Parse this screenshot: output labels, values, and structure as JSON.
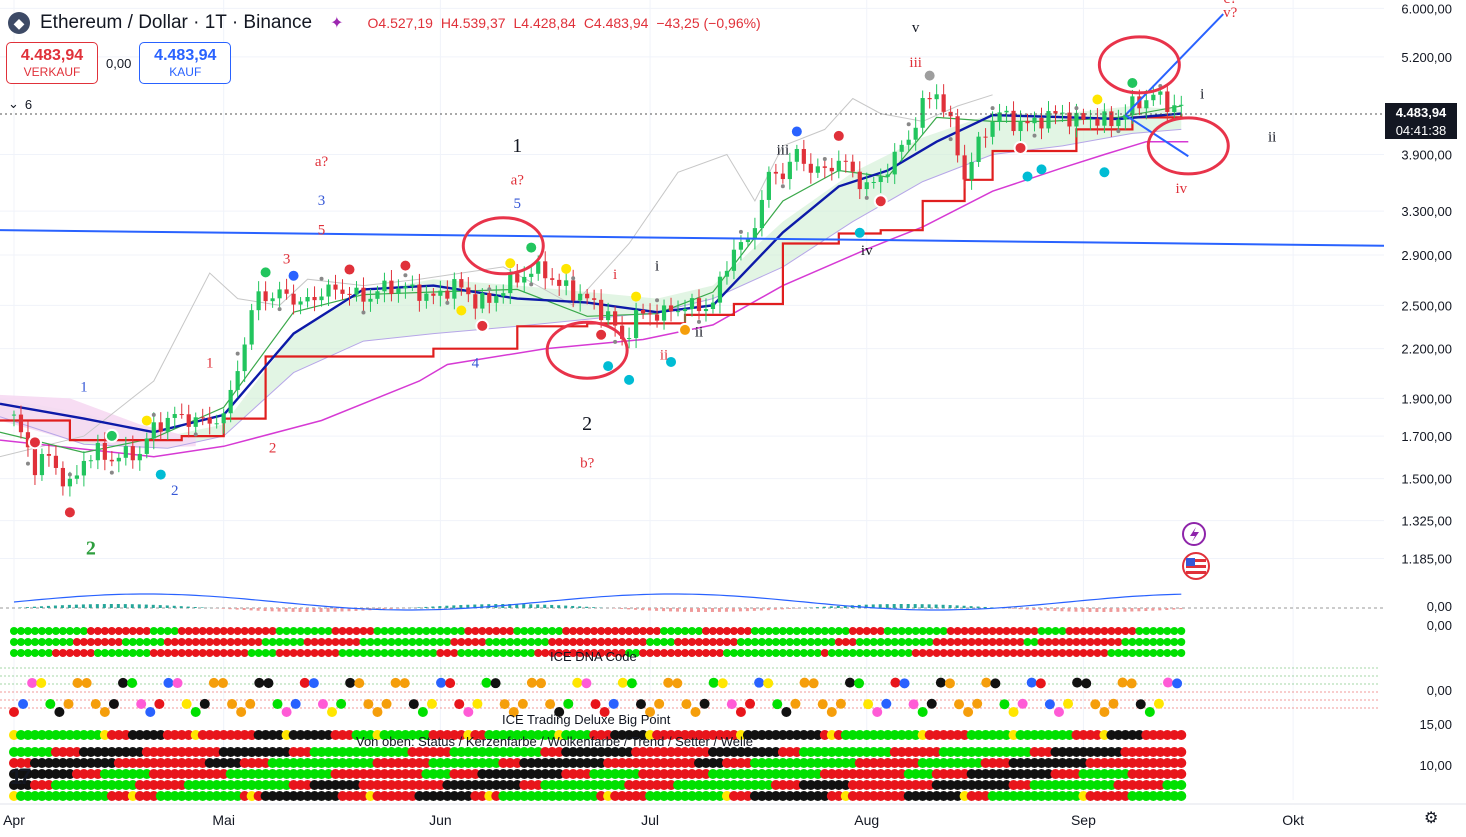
{
  "header": {
    "symbol": "Ethereum / Dollar · 1T · Binance",
    "open": "O4.527,19",
    "high": "H4.539,37",
    "low": "L4.428,84",
    "close": "C4.483,94",
    "change": "−43,25 (−0,96%)",
    "sell_price": "4.483,94",
    "sell_label": "VERKAUF",
    "spread": "0,00",
    "buy_price": "4.483,94",
    "buy_label": "KAUF",
    "indicator_count": "6",
    "current_price": "4.483,94",
    "countdown": "04:41:38"
  },
  "indicator_titles": {
    "dna": "ICE DNA Code",
    "deluxe": "ICE Trading Deluxe Big Point",
    "rows_note": "Von oben: Status / Kerzenfarbe / Wolkenfarbe / Trend / Setter / Welle"
  },
  "colors": {
    "up": "#089981",
    "down": "#f23645",
    "green": "#22c55e",
    "red": "#e0313a",
    "blue_line": "#2962ff",
    "kijun": "#0d1aa8",
    "trail": "#e01e1e",
    "cloud": "#cfeed2",
    "pink_cloud": "#f6d9f2",
    "magenta": "#d63ad4",
    "label_red": "#e0313a",
    "label_blue": "#3557d6",
    "label_green": "#2e9e3e"
  },
  "chart_data": {
    "type": "candlestick",
    "title": "Ethereum / Dollar · 1T · Binance",
    "price_scale": "log",
    "ylim": [
      1080,
      6150
    ],
    "y_ticks": [
      {
        "v": 6000,
        "label": "6.000,00"
      },
      {
        "v": 5200,
        "label": "5.200,00"
      },
      {
        "v": 3900,
        "label": "3.900,00"
      },
      {
        "v": 3300,
        "label": "3.300,00"
      },
      {
        "v": 2900,
        "label": "2.900,00"
      },
      {
        "v": 2500,
        "label": "2.500,00"
      },
      {
        "v": 2200,
        "label": "2.200,00"
      },
      {
        "v": 1900,
        "label": "1.900,00"
      },
      {
        "v": 1700,
        "label": "1.700,00"
      },
      {
        "v": 1500,
        "label": "1.500,00"
      },
      {
        "v": 1325,
        "label": "1.325,00"
      },
      {
        "v": 1185,
        "label": "1.185,00"
      }
    ],
    "x_labels": [
      "Apr",
      "Mai",
      "Jun",
      "Jul",
      "Aug",
      "Sep",
      "Okt"
    ],
    "x_label_days": [
      0,
      30,
      61,
      91,
      122,
      153,
      183
    ],
    "day_range": [
      -2,
      196
    ],
    "last_day": 167,
    "closes": [
      [
        0,
        1790
      ],
      [
        3,
        1560
      ],
      [
        5,
        1600
      ],
      [
        7,
        1500
      ],
      [
        8,
        1460
      ],
      [
        9,
        1520
      ],
      [
        10,
        1590
      ],
      [
        12,
        1620
      ],
      [
        14,
        1590
      ],
      [
        16,
        1610
      ],
      [
        18,
        1620
      ],
      [
        20,
        1740
      ],
      [
        22,
        1790
      ],
      [
        24,
        1800
      ],
      [
        26,
        1780
      ],
      [
        28,
        1770
      ],
      [
        29,
        1800
      ],
      [
        30,
        1790
      ],
      [
        33,
        2250
      ],
      [
        35,
        2600
      ],
      [
        37,
        2550
      ],
      [
        39,
        2600
      ],
      [
        41,
        2500
      ],
      [
        44,
        2600
      ],
      [
        47,
        2620
      ],
      [
        50,
        2550
      ],
      [
        53,
        2630
      ],
      [
        55,
        2640
      ],
      [
        58,
        2600
      ],
      [
        60,
        2550
      ],
      [
        63,
        2660
      ],
      [
        66,
        2540
      ],
      [
        68,
        2520
      ],
      [
        70,
        2640
      ],
      [
        72,
        2700
      ],
      [
        74,
        2770
      ],
      [
        76,
        2760
      ],
      [
        78,
        2650
      ],
      [
        81,
        2580
      ],
      [
        83,
        2500
      ],
      [
        85,
        2430
      ],
      [
        87,
        2250
      ],
      [
        89,
        2420
      ],
      [
        91,
        2440
      ],
      [
        93,
        2440
      ],
      [
        96,
        2500
      ],
      [
        98,
        2480
      ],
      [
        100,
        2520
      ],
      [
        103,
        2970
      ],
      [
        105,
        3000
      ],
      [
        108,
        3650
      ],
      [
        110,
        3700
      ],
      [
        112,
        3900
      ],
      [
        114,
        3750
      ],
      [
        116,
        3700
      ],
      [
        118,
        3850
      ],
      [
        121,
        3600
      ],
      [
        123,
        3550
      ],
      [
        125,
        3760
      ],
      [
        128,
        4100
      ],
      [
        130,
        4500
      ],
      [
        132,
        4700
      ],
      [
        134,
        4250
      ],
      [
        136,
        3650
      ],
      [
        139,
        4200
      ],
      [
        141,
        4400
      ],
      [
        143,
        4300
      ],
      [
        145,
        4250
      ],
      [
        147,
        4340
      ],
      [
        150,
        4400
      ],
      [
        152,
        4300
      ],
      [
        154,
        4350
      ],
      [
        157,
        4280
      ],
      [
        160,
        4500
      ],
      [
        163,
        4650
      ],
      [
        165,
        4530
      ],
      [
        167,
        4484
      ]
    ],
    "kijun": [
      [
        -2,
        1870
      ],
      [
        10,
        1790
      ],
      [
        20,
        1720
      ],
      [
        30,
        1810
      ],
      [
        40,
        2300
      ],
      [
        50,
        2620
      ],
      [
        60,
        2650
      ],
      [
        72,
        2550
      ],
      [
        82,
        2520
      ],
      [
        92,
        2450
      ],
      [
        100,
        2500
      ],
      [
        110,
        3100
      ],
      [
        118,
        3550
      ],
      [
        125,
        3720
      ],
      [
        132,
        4050
      ],
      [
        140,
        4380
      ],
      [
        148,
        4360
      ],
      [
        158,
        4330
      ],
      [
        167,
        4400
      ]
    ],
    "tenkan": [
      [
        -2,
        1720
      ],
      [
        10,
        1620
      ],
      [
        20,
        1690
      ],
      [
        30,
        1850
      ],
      [
        40,
        2450
      ],
      [
        50,
        2580
      ],
      [
        60,
        2600
      ],
      [
        72,
        2620
      ],
      [
        82,
        2420
      ],
      [
        92,
        2440
      ],
      [
        100,
        2600
      ],
      [
        110,
        3400
      ],
      [
        118,
        3720
      ],
      [
        125,
        3650
      ],
      [
        132,
        4350
      ],
      [
        140,
        4300
      ],
      [
        148,
        4300
      ],
      [
        158,
        4350
      ],
      [
        167,
        4500
      ]
    ],
    "trail": [
      [
        -2,
        1780
      ],
      [
        8,
        1680
      ],
      [
        24,
        1700
      ],
      [
        30,
        1790
      ],
      [
        36,
        2150
      ],
      [
        60,
        2200
      ],
      [
        72,
        2350
      ],
      [
        82,
        2370
      ],
      [
        96,
        2430
      ],
      [
        103,
        2510
      ],
      [
        110,
        3000
      ],
      [
        118,
        3090
      ],
      [
        124,
        3120
      ],
      [
        130,
        3400
      ],
      [
        136,
        3620
      ],
      [
        140,
        3940
      ],
      [
        152,
        4200
      ],
      [
        160,
        4350
      ],
      [
        167,
        4400
      ]
    ],
    "cloud_top": [
      [
        -2,
        1900
      ],
      [
        10,
        1820
      ],
      [
        22,
        1700
      ],
      [
        30,
        1760
      ],
      [
        40,
        2300
      ],
      [
        50,
        2600
      ],
      [
        60,
        2700
      ],
      [
        72,
        2650
      ],
      [
        82,
        2600
      ],
      [
        92,
        2550
      ],
      [
        100,
        2650
      ],
      [
        110,
        3200
      ],
      [
        120,
        3700
      ],
      [
        130,
        4100
      ],
      [
        140,
        4400
      ],
      [
        150,
        4400
      ],
      [
        160,
        4500
      ],
      [
        167,
        4450
      ]
    ],
    "cloud_bot": [
      [
        -2,
        1800
      ],
      [
        10,
        1660
      ],
      [
        22,
        1640
      ],
      [
        30,
        1700
      ],
      [
        40,
        2050
      ],
      [
        50,
        2250
      ],
      [
        60,
        2300
      ],
      [
        72,
        2350
      ],
      [
        82,
        2400
      ],
      [
        92,
        2450
      ],
      [
        100,
        2550
      ],
      [
        110,
        2800
      ],
      [
        120,
        3200
      ],
      [
        130,
        3600
      ],
      [
        140,
        3900
      ],
      [
        150,
        4000
      ],
      [
        160,
        4150
      ],
      [
        167,
        4200
      ]
    ],
    "lower_band": [
      [
        -2,
        1680
      ],
      [
        20,
        1600
      ],
      [
        30,
        1650
      ],
      [
        44,
        1780
      ],
      [
        58,
        2000
      ],
      [
        62,
        2100
      ],
      [
        76,
        2200
      ],
      [
        90,
        2260
      ],
      [
        100,
        2360
      ],
      [
        110,
        2650
      ],
      [
        122,
        2950
      ],
      [
        126,
        3050
      ],
      [
        130,
        3150
      ],
      [
        140,
        3500
      ],
      [
        150,
        3750
      ],
      [
        156,
        3900
      ],
      [
        162,
        4050
      ],
      [
        168,
        4050
      ]
    ],
    "lagging": [
      [
        -2,
        1600
      ],
      [
        10,
        1700
      ],
      [
        20,
        2000
      ],
      [
        28,
        2750
      ],
      [
        32,
        2550
      ],
      [
        38,
        2500
      ],
      [
        42,
        2700
      ],
      [
        50,
        2650
      ],
      [
        58,
        2700
      ],
      [
        70,
        2800
      ],
      [
        80,
        2500
      ],
      [
        88,
        3000
      ],
      [
        95,
        3700
      ],
      [
        102,
        3900
      ],
      [
        106,
        3400
      ],
      [
        110,
        4000
      ],
      [
        116,
        4200
      ],
      [
        120,
        4600
      ],
      [
        124,
        4400
      ],
      [
        130,
        4300
      ],
      [
        135,
        4500
      ],
      [
        140,
        4650
      ]
    ],
    "trendlines": [
      {
        "name": "horizontal-resistance",
        "from": [
          -2,
          3120
        ],
        "to": [
          196,
          2980
        ]
      },
      {
        "name": "wave-projection-up",
        "from": [
          159,
          4380
        ],
        "to": [
          173,
          5900
        ]
      },
      {
        "name": "wave-projection-down",
        "from": [
          159,
          4380
        ],
        "to": [
          168,
          3880
        ]
      }
    ],
    "wave_labels": [
      {
        "text": "v",
        "day": 129,
        "price": 5600,
        "color": "black"
      },
      {
        "text": "iii",
        "day": 129,
        "price": 5050,
        "color": "red"
      },
      {
        "text": "c?",
        "day": 174,
        "price": 6100,
        "color": "red"
      },
      {
        "text": "v?",
        "day": 174,
        "price": 5850,
        "color": "red"
      },
      {
        "text": "i",
        "day": 170,
        "price": 4600,
        "color": "black"
      },
      {
        "text": "ii",
        "day": 180,
        "price": 4050,
        "color": "black"
      },
      {
        "text": "iv",
        "day": 167,
        "price": 3480,
        "color": "red"
      },
      {
        "text": "iii",
        "day": 110,
        "price": 3900,
        "color": "black"
      },
      {
        "text": "iv",
        "day": 122,
        "price": 2900,
        "color": "black"
      },
      {
        "text": "a?",
        "day": 44,
        "price": 3770,
        "color": "red"
      },
      {
        "text": "3",
        "day": 44,
        "price": 3360,
        "color": "blue"
      },
      {
        "text": "5",
        "day": 44,
        "price": 3080,
        "color": "red"
      },
      {
        "text": "3",
        "day": 39,
        "price": 2830,
        "color": "red"
      },
      {
        "text": "1",
        "day": 72,
        "price": 3930,
        "color": "black"
      },
      {
        "text": "a?",
        "day": 72,
        "price": 3570,
        "color": "red"
      },
      {
        "text": "5",
        "day": 72,
        "price": 3330,
        "color": "blue"
      },
      {
        "text": "i",
        "day": 86,
        "price": 2700,
        "color": "red"
      },
      {
        "text": "i",
        "day": 92,
        "price": 2770,
        "color": "black"
      },
      {
        "text": "ii",
        "day": 98,
        "price": 2280,
        "color": "black"
      },
      {
        "text": "ii",
        "day": 93,
        "price": 2130,
        "color": "red"
      },
      {
        "text": "4",
        "day": 66,
        "price": 2080,
        "color": "blue"
      },
      {
        "text": "2",
        "day": 82,
        "price": 1730,
        "color": "black"
      },
      {
        "text": "b?",
        "day": 82,
        "price": 1550,
        "color": "red"
      },
      {
        "text": "1",
        "day": 28,
        "price": 2080,
        "color": "red"
      },
      {
        "text": "1",
        "day": 10,
        "price": 1940,
        "color": "blue"
      },
      {
        "text": "2",
        "day": 37,
        "price": 1620,
        "color": "red"
      },
      {
        "text": "2",
        "day": 23,
        "price": 1430,
        "color": "blue"
      },
      {
        "text": "2",
        "day": 11,
        "price": 1200,
        "color": "green"
      }
    ],
    "circles": [
      {
        "day": 70,
        "price": 2980
      },
      {
        "day": 82,
        "price": 2190
      },
      {
        "day": 161,
        "price": 5080
      },
      {
        "day": 168,
        "price": 4000
      }
    ],
    "pane_labels": {
      "oscillator": "0,00",
      "dna_top": "0,00",
      "dna_mid": "0,00",
      "deluxe_top": "15,00",
      "deluxe_bot": "10,00"
    }
  }
}
